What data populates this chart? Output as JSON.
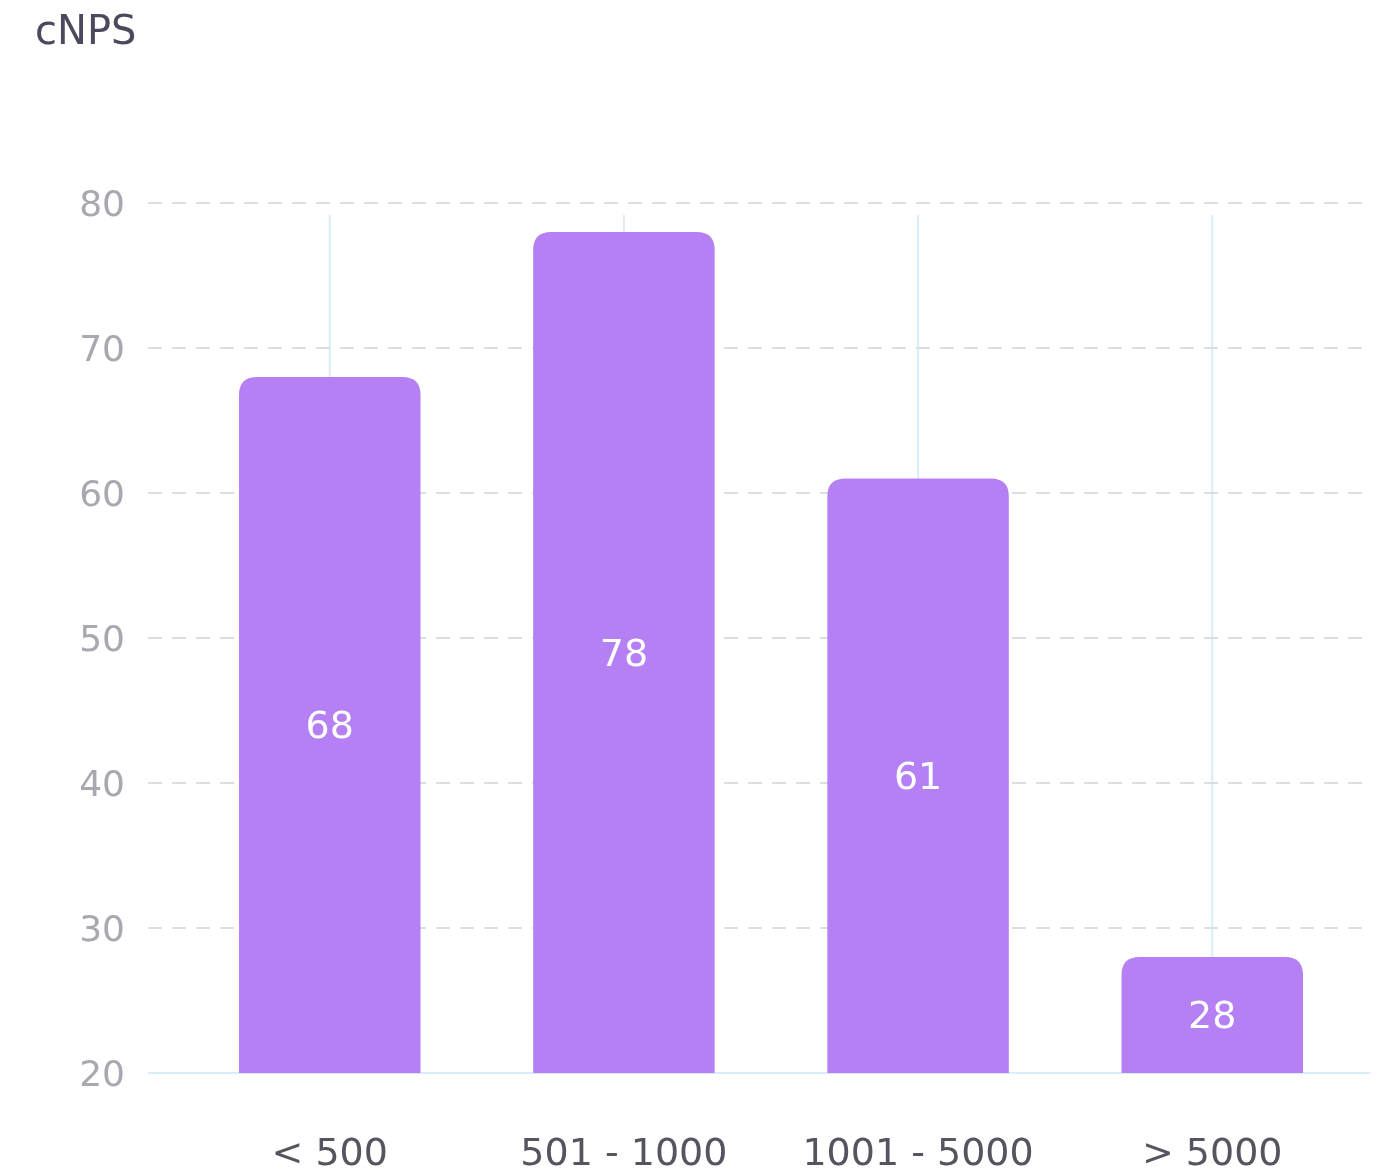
{
  "chart_data": {
    "type": "bar",
    "title": "cNPS",
    "categories": [
      "< 500",
      "501 - 1000",
      "1001 - 5000",
      "> 5000"
    ],
    "values": [
      68,
      78,
      61,
      28
    ],
    "color": "#b580f4",
    "ylim": [
      20,
      80
    ],
    "yticks": [
      20,
      30,
      40,
      50,
      60,
      70,
      80
    ],
    "grid": true,
    "data_labels": true
  }
}
